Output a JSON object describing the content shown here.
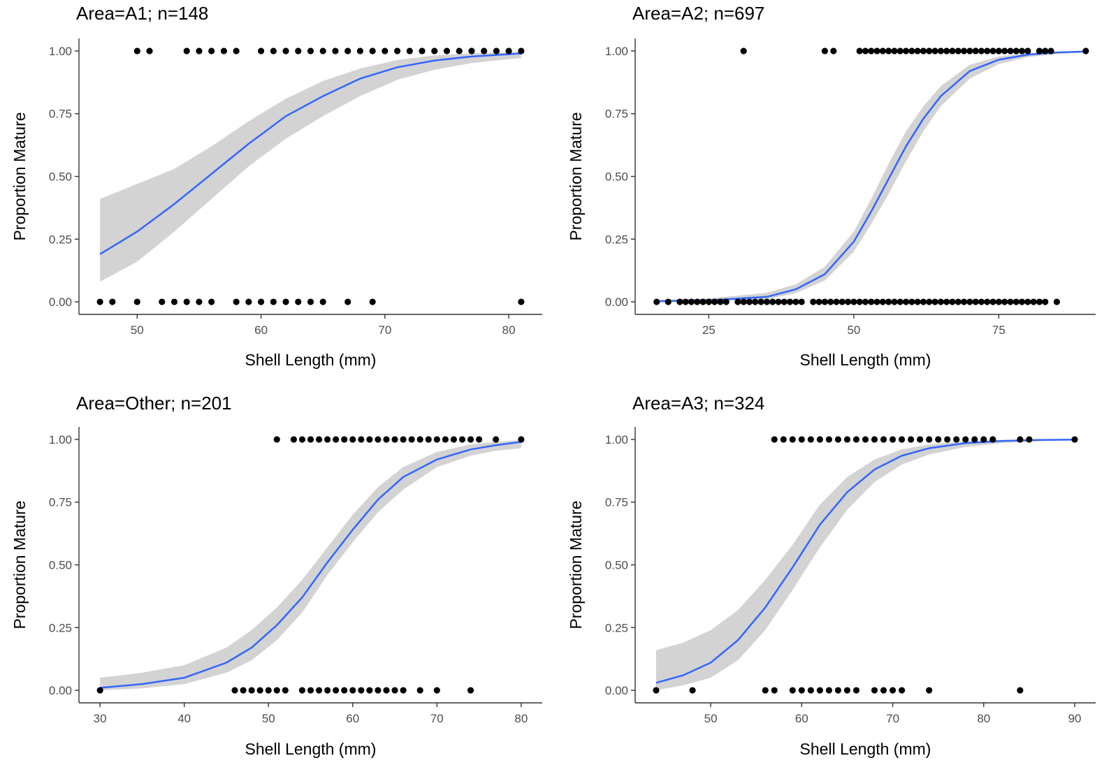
{
  "colors": {
    "background": "#ffffff",
    "band": "#d3d3d3",
    "line": "#3366ff",
    "points": "#000000",
    "axis": "#333333",
    "tick_text": "#4d4d4d",
    "text": "#000000"
  },
  "chart_data": [
    {
      "type": "scatter",
      "title": "Area=A1; n=148",
      "xlabel": "Shell Length (mm)",
      "ylabel": "Proportion Mature",
      "xlim": [
        45.3,
        82.7
      ],
      "ylim": [
        -0.05,
        1.05
      ],
      "xticks": [
        50,
        60,
        70,
        80
      ],
      "xtick_labels": [
        "50",
        "60",
        "70",
        "80"
      ],
      "yticks": [
        0,
        0.25,
        0.5,
        0.75,
        1
      ],
      "ytick_labels": [
        "0.00",
        "0.25",
        "0.50",
        "0.75",
        "1.00"
      ],
      "grid": false,
      "points_y1": [
        50,
        51,
        54,
        55,
        56,
        57,
        58,
        60,
        61,
        62,
        63,
        64,
        65,
        66,
        67,
        68,
        69,
        70,
        71,
        72,
        73,
        74,
        75,
        76,
        77,
        78,
        79,
        80,
        81
      ],
      "points_y0": [
        47,
        48,
        50,
        52,
        53,
        54,
        55,
        56,
        58,
        59,
        60,
        61,
        62,
        63,
        64,
        65,
        67,
        69,
        81
      ],
      "fit": {
        "x": [
          47,
          50,
          53,
          56,
          59,
          62,
          65,
          68,
          71,
          74,
          77,
          81
        ],
        "y": [
          0.19,
          0.28,
          0.39,
          0.51,
          0.63,
          0.74,
          0.82,
          0.89,
          0.935,
          0.962,
          0.978,
          0.99
        ],
        "lower": [
          0.08,
          0.16,
          0.28,
          0.41,
          0.54,
          0.65,
          0.74,
          0.82,
          0.885,
          0.925,
          0.952,
          0.972
        ],
        "upper": [
          0.41,
          0.47,
          0.53,
          0.62,
          0.72,
          0.81,
          0.88,
          0.93,
          0.964,
          0.982,
          0.991,
          0.997
        ]
      }
    },
    {
      "type": "scatter",
      "title": "Area=A2; n=697",
      "xlabel": "Shell Length (mm)",
      "ylabel": "Proportion Mature",
      "xlim": [
        12.3,
        91.7
      ],
      "ylim": [
        -0.05,
        1.05
      ],
      "xticks": [
        25,
        50,
        75
      ],
      "xtick_labels": [
        "25",
        "50",
        "75"
      ],
      "yticks": [
        0,
        0.25,
        0.5,
        0.75,
        1
      ],
      "ytick_labels": [
        "0.00",
        "0.25",
        "0.50",
        "0.75",
        "1.00"
      ],
      "grid": false,
      "points_y1": [
        31,
        45,
        46.5,
        51,
        52,
        53,
        54,
        55,
        56,
        57,
        58,
        59,
        60,
        61,
        62,
        63,
        64,
        65,
        66,
        67,
        68,
        69,
        70,
        71,
        72,
        73,
        74,
        75,
        76,
        77,
        78,
        79,
        80,
        82,
        83,
        84,
        90
      ],
      "points_y0": [
        16,
        18,
        20,
        21,
        22,
        23,
        24,
        25,
        26,
        27,
        28,
        30,
        31,
        32,
        33,
        34,
        35,
        36,
        37,
        38,
        39,
        40,
        41,
        43,
        44,
        45,
        46,
        47,
        48,
        49,
        50,
        51,
        52,
        53,
        54,
        55,
        56,
        57,
        58,
        59,
        60,
        61,
        62,
        63,
        64,
        65,
        66,
        67,
        68,
        69,
        70,
        71,
        72,
        73,
        74,
        75,
        76,
        77,
        78,
        79,
        80,
        81,
        82,
        83,
        85
      ],
      "fit": {
        "x": [
          16,
          25,
          35,
          40,
          45,
          50,
          53,
          56,
          59,
          62,
          65,
          70,
          75,
          80,
          85,
          90
        ],
        "y": [
          0.002,
          0.006,
          0.02,
          0.05,
          0.11,
          0.24,
          0.36,
          0.49,
          0.62,
          0.73,
          0.82,
          0.92,
          0.965,
          0.985,
          0.994,
          0.998
        ],
        "lower": [
          0.0,
          0.002,
          0.01,
          0.035,
          0.085,
          0.2,
          0.31,
          0.43,
          0.56,
          0.68,
          0.78,
          0.89,
          0.948,
          0.975,
          0.988,
          0.994
        ],
        "upper": [
          0.008,
          0.014,
          0.036,
          0.07,
          0.14,
          0.28,
          0.41,
          0.55,
          0.68,
          0.78,
          0.86,
          0.945,
          0.978,
          0.992,
          0.998,
          1.0
        ]
      }
    },
    {
      "type": "scatter",
      "title": "Area=Other; n=201",
      "xlabel": "Shell Length (mm)",
      "ylabel": "Proportion Mature",
      "xlim": [
        27.5,
        82.5
      ],
      "ylim": [
        -0.05,
        1.05
      ],
      "xticks": [
        30,
        40,
        50,
        60,
        70,
        80
      ],
      "xtick_labels": [
        "30",
        "40",
        "50",
        "60",
        "70",
        "80"
      ],
      "yticks": [
        0,
        0.25,
        0.5,
        0.75,
        1
      ],
      "ytick_labels": [
        "0.00",
        "0.25",
        "0.50",
        "0.75",
        "1.00"
      ],
      "grid": false,
      "points_y1": [
        51,
        53,
        54,
        55,
        56,
        57,
        58,
        59,
        60,
        61,
        62,
        63,
        64,
        65,
        66,
        67,
        68,
        69,
        70,
        71,
        72,
        73,
        74,
        75,
        77,
        80
      ],
      "points_y0": [
        30,
        46,
        47,
        48,
        49,
        50,
        51,
        52,
        54,
        55,
        56,
        57,
        58,
        59,
        60,
        61,
        62,
        63,
        64,
        65,
        66,
        68,
        70,
        74
      ],
      "fit": {
        "x": [
          30,
          35,
          40,
          45,
          48,
          51,
          54,
          57,
          60,
          63,
          66,
          70,
          74,
          77,
          80
        ],
        "y": [
          0.01,
          0.025,
          0.05,
          0.11,
          0.17,
          0.26,
          0.37,
          0.51,
          0.64,
          0.76,
          0.85,
          0.92,
          0.96,
          0.977,
          0.99
        ],
        "lower": [
          0.0,
          0.008,
          0.025,
          0.07,
          0.12,
          0.2,
          0.31,
          0.46,
          0.59,
          0.71,
          0.8,
          0.89,
          0.935,
          0.955,
          0.965
        ],
        "upper": [
          0.05,
          0.07,
          0.1,
          0.17,
          0.24,
          0.33,
          0.44,
          0.57,
          0.7,
          0.81,
          0.89,
          0.95,
          0.98,
          0.99,
          0.998
        ]
      }
    },
    {
      "type": "scatter",
      "title": "Area=A3; n=324",
      "xlabel": "Shell Length (mm)",
      "ylabel": "Proportion Mature",
      "xlim": [
        41.7,
        92.3
      ],
      "ylim": [
        -0.05,
        1.05
      ],
      "xticks": [
        50,
        60,
        70,
        80,
        90
      ],
      "xtick_labels": [
        "50",
        "60",
        "70",
        "80",
        "90"
      ],
      "yticks": [
        0,
        0.25,
        0.5,
        0.75,
        1
      ],
      "ytick_labels": [
        "0.00",
        "0.25",
        "0.50",
        "0.75",
        "1.00"
      ],
      "grid": false,
      "points_y1": [
        57,
        58,
        59,
        60,
        61,
        62,
        63,
        64,
        65,
        66,
        67,
        68,
        69,
        70,
        71,
        72,
        73,
        74,
        75,
        76,
        77,
        78,
        79,
        80,
        81,
        84,
        85,
        90
      ],
      "points_y0": [
        44,
        48,
        56,
        57,
        59,
        60,
        61,
        62,
        63,
        64,
        65,
        66,
        68,
        69,
        70,
        71,
        74,
        84
      ],
      "fit": {
        "x": [
          44,
          47,
          50,
          53,
          56,
          59,
          62,
          65,
          68,
          71,
          74,
          78,
          82,
          86,
          90
        ],
        "y": [
          0.03,
          0.06,
          0.11,
          0.2,
          0.33,
          0.49,
          0.66,
          0.79,
          0.88,
          0.935,
          0.965,
          0.985,
          0.994,
          0.998,
          0.999
        ],
        "lower": [
          0.0,
          0.02,
          0.05,
          0.12,
          0.24,
          0.4,
          0.57,
          0.72,
          0.83,
          0.9,
          0.94,
          0.97,
          0.985,
          0.993,
          0.996
        ],
        "upper": [
          0.16,
          0.19,
          0.24,
          0.32,
          0.44,
          0.58,
          0.74,
          0.85,
          0.92,
          0.96,
          0.98,
          0.993,
          0.998,
          1.0,
          1.0
        ]
      }
    }
  ]
}
